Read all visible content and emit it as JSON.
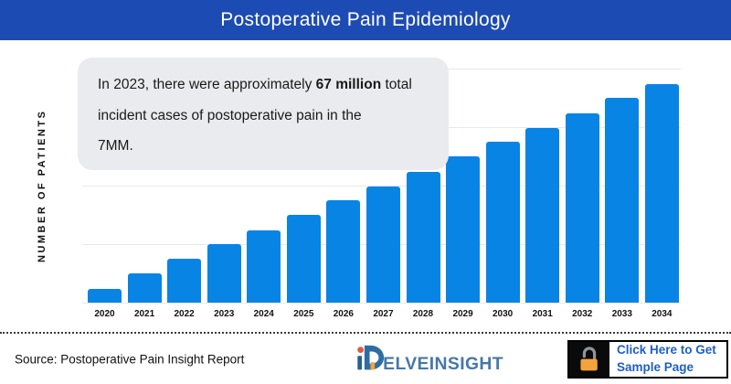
{
  "header": {
    "title": "Postoperative Pain Epidemiology",
    "bg_color": "#1d4bb4",
    "text_color": "#ffffff"
  },
  "chart_data": {
    "type": "bar",
    "title": "Postoperative Pain Epidemiology",
    "xlabel": "",
    "ylabel": "NUMBER OF PATIENTS",
    "categories": [
      "2020",
      "2021",
      "2022",
      "2023",
      "2024",
      "2025",
      "2026",
      "2027",
      "2028",
      "2029",
      "2030",
      "2031",
      "2032",
      "2033",
      "2034"
    ],
    "values": [
      16,
      33,
      50,
      67,
      83,
      100,
      117,
      133,
      150,
      167,
      184,
      200,
      217,
      234,
      250
    ],
    "unit": "million patients (estimated from bar heights, anchored to 2023 = 67 million)",
    "ylim": [
      0,
      268
    ],
    "gridline_values": [
      0,
      67,
      134,
      201,
      268
    ],
    "y_tick_labels_visible": false,
    "grid": "horizontal",
    "legend": "none",
    "bar_color": "#0884e4",
    "annotation_summary": "In 2023, there were approximately 67 million total incident cases of postoperative pain in the 7MM."
  },
  "annotation": {
    "lines": [
      {
        "prefix": "In 2023, there were approximately ",
        "bold": "67 million",
        "suffix": " total"
      },
      {
        "text": "incident cases of postoperative pain in the"
      },
      {
        "text": "7MM."
      }
    ],
    "bg_color": "#e9ebee"
  },
  "footer": {
    "source": "Source: Postoperative Pain Insight Report",
    "logo_name": "DelveInsight",
    "logo_text": "ELVEINSIGHT",
    "logo_color": "#4678aa",
    "cta_line1": "Click Here to Get",
    "cta_line2": "Sample Page",
    "cta_color": "#1d5fc6",
    "lock_color": "#f2a33c"
  }
}
